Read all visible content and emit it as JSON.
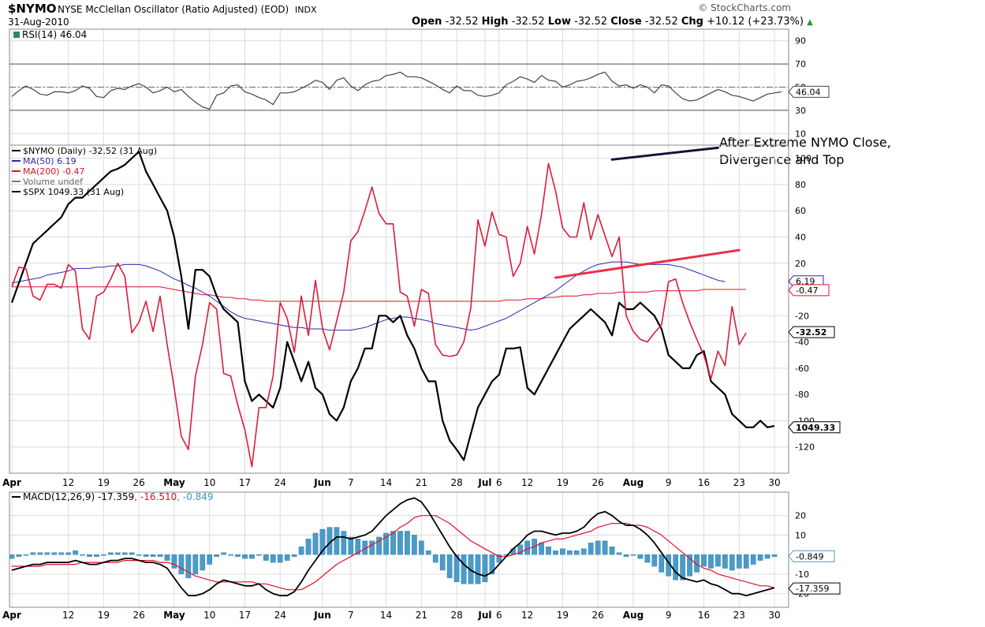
{
  "header": {
    "ticker": "$NYMO",
    "description": "NYSE McClellan Oscillator (Ratio Adjusted) (EOD)",
    "exchange": "INDX",
    "brand": "© StockCharts.com",
    "date": "31-Aug-2010",
    "ohlc": {
      "open_label": "Open",
      "open": "-32.52",
      "high_label": "High",
      "high": "-32.52",
      "low_label": "Low",
      "low": "-32.52",
      "close_label": "Close",
      "close": "-32.52",
      "chg_label": "Chg",
      "chg": "+10.12 (+23.73%)"
    }
  },
  "annotation": {
    "line1": "After Extreme NYMO Close,",
    "line2": "Divergence and Top"
  },
  "colors": {
    "nymo": "#000000",
    "ma50": "#2b2bb0",
    "ma200": "#e0102a",
    "spx": "#000000",
    "trend_red": "#e8304a",
    "trend_purple": "#1a1035",
    "macd_hist": "#4a9cc8",
    "macd_signal": "#e0102a",
    "macd_hist_label": "#3399cc"
  },
  "x_axis": {
    "top_labels": [
      {
        "text": "Apr",
        "bold": true,
        "i": 0
      },
      {
        "text": "12",
        "i": 8
      },
      {
        "text": "19",
        "i": 13
      },
      {
        "text": "26",
        "i": 18
      },
      {
        "text": "May",
        "bold": true,
        "i": 23
      },
      {
        "text": "10",
        "i": 28
      },
      {
        "text": "17",
        "i": 33
      },
      {
        "text": "24",
        "i": 38
      },
      {
        "text": "Jun",
        "bold": true,
        "i": 44
      },
      {
        "text": "7",
        "i": 48
      },
      {
        "text": "14",
        "i": 53
      },
      {
        "text": "21",
        "i": 58
      },
      {
        "text": "28",
        "i": 63
      },
      {
        "text": "Jul",
        "bold": true,
        "i": 67
      },
      {
        "text": "6",
        "i": 69
      },
      {
        "text": "12",
        "i": 73
      },
      {
        "text": "19",
        "i": 78
      },
      {
        "text": "26",
        "i": 83
      },
      {
        "text": "Aug",
        "bold": true,
        "i": 88
      },
      {
        "text": "9",
        "i": 93
      },
      {
        "text": "16",
        "i": 98
      },
      {
        "text": "23",
        "i": 103
      },
      {
        "text": "30",
        "i": 108
      }
    ]
  },
  "chart_data": [
    {
      "type": "line",
      "name": "RSI panel",
      "legend": "RSI(14) 46.04",
      "ylim": [
        0,
        100
      ],
      "ticks": [
        10,
        30,
        50,
        70,
        90
      ],
      "ref_lines": [
        30,
        70
      ],
      "last_label": "46.04",
      "series": [
        {
          "name": "RSI(14)",
          "values": [
            42,
            47,
            51,
            48,
            44,
            43,
            46,
            46,
            45,
            47,
            51,
            49,
            42,
            41,
            47,
            49,
            48,
            51,
            53,
            50,
            45,
            47,
            50,
            46,
            48,
            42,
            37,
            33,
            31,
            43,
            45,
            51,
            52,
            46,
            44,
            41,
            39,
            35,
            45,
            45,
            46,
            49,
            52,
            56,
            54,
            48,
            56,
            58,
            51,
            47,
            52,
            55,
            56,
            60,
            61,
            63,
            59,
            59,
            58,
            55,
            52,
            48,
            45,
            51,
            47,
            47,
            43,
            42,
            43,
            45,
            52,
            55,
            59,
            57,
            54,
            60,
            56,
            55,
            50,
            52,
            55,
            56,
            58,
            61,
            63,
            55,
            51,
            52,
            49,
            52,
            50,
            45,
            52,
            51,
            45,
            40,
            38,
            39,
            42,
            45,
            48,
            46,
            43,
            42,
            40,
            38,
            41,
            44,
            45,
            46
          ]
        }
      ]
    },
    {
      "type": "line",
      "name": "Main panel",
      "legend": [
        "$NYMO (Daily) -32.52 (31 Aug)",
        "MA(50) 6.19",
        "MA(200) -0.47",
        "Volume undef",
        "$SPX 1049.33 (31 Aug)"
      ],
      "ylim": [
        -140,
        110
      ],
      "ticks": [
        -120,
        -100,
        -80,
        -60,
        -40,
        -20,
        20,
        40,
        60,
        80,
        100
      ],
      "last_labels": {
        "ma50": "6.19",
        "ma200": "-0.47",
        "nymo": "-32.52",
        "spx": "1049.33"
      },
      "series": [
        {
          "name": "$NYMO",
          "values": [
            2,
            17,
            16,
            -5,
            -8,
            4,
            4,
            1,
            19,
            14,
            -30,
            -38,
            -5,
            -2,
            8,
            20,
            10,
            -33,
            -25,
            -9,
            -32,
            -5,
            -42,
            -75,
            -112,
            -122,
            -66,
            -42,
            -10,
            -15,
            -64,
            -66,
            -88,
            -107,
            -135,
            -90,
            -90,
            -66,
            -10,
            -22,
            -48,
            -5,
            -35,
            7,
            -30,
            -46,
            -24,
            -2,
            37,
            44,
            60,
            78,
            58,
            50,
            50,
            -2,
            -5,
            -28,
            0,
            -3,
            -42,
            -50,
            -51,
            -50,
            -40,
            -14,
            53,
            33,
            59,
            42,
            40,
            10,
            20,
            48,
            27,
            57,
            96,
            75,
            47,
            40,
            40,
            66,
            38,
            57,
            41,
            25,
            40,
            -20,
            -32,
            -38,
            -40,
            -33,
            -27,
            6,
            8,
            -10,
            -25,
            -38,
            -50,
            -68,
            -47,
            -58,
            -13,
            -42,
            -33
          ]
        },
        {
          "name": "MA(50)",
          "values": [
            5,
            6,
            7,
            8,
            9,
            11,
            12,
            13,
            14,
            16,
            16,
            16,
            17,
            17,
            18,
            18,
            19,
            19,
            19,
            18,
            16,
            14,
            11,
            8,
            6,
            3,
            1,
            -2,
            -5,
            -9,
            -13,
            -17,
            -20,
            -22,
            -23,
            -24,
            -25,
            -26,
            -27,
            -28,
            -29,
            -29,
            -30,
            -30,
            -30,
            -31,
            -31,
            -31,
            -31,
            -30,
            -29,
            -27,
            -25,
            -23,
            -22,
            -21,
            -21,
            -22,
            -23,
            -24,
            -26,
            -27,
            -28,
            -29,
            -30,
            -31,
            -30,
            -28,
            -26,
            -24,
            -22,
            -19,
            -16,
            -13,
            -10,
            -7,
            -4,
            -1,
            3,
            7,
            11,
            14,
            17,
            19,
            20,
            21,
            21,
            21,
            20,
            19,
            19,
            19,
            19,
            19,
            18,
            17,
            15,
            13,
            11,
            9,
            7,
            6
          ]
        },
        {
          "name": "MA(200)",
          "values": [
            2,
            2,
            2,
            2,
            2,
            2,
            2,
            2,
            2,
            2,
            2,
            2,
            2,
            2,
            2,
            2,
            2,
            2,
            2,
            2,
            2,
            2,
            1,
            0,
            -1,
            -2,
            -3,
            -4,
            -4,
            -5,
            -6,
            -6,
            -7,
            -7,
            -8,
            -8,
            -9,
            -9,
            -9,
            -9,
            -9,
            -9,
            -9,
            -9,
            -9,
            -9,
            -9,
            -9,
            -9,
            -9,
            -9,
            -9,
            -9,
            -9,
            -9,
            -9,
            -9,
            -9,
            -9,
            -9,
            -9,
            -9,
            -9,
            -9,
            -9,
            -9,
            -9,
            -9,
            -9,
            -9,
            -8,
            -8,
            -8,
            -7,
            -7,
            -7,
            -6,
            -6,
            -5,
            -5,
            -5,
            -4,
            -4,
            -3,
            -3,
            -3,
            -2,
            -2,
            -2,
            -2,
            -2,
            -1,
            -1,
            -1,
            -1,
            -1,
            -1,
            -1,
            0,
            0,
            0,
            0,
            0,
            0,
            0
          ]
        },
        {
          "name": "$SPX",
          "price_labels": [
            "1049.33"
          ],
          "values": [
            -10,
            5,
            20,
            35,
            40,
            45,
            50,
            55,
            65,
            70,
            70,
            75,
            80,
            85,
            90,
            92,
            95,
            100,
            105,
            90,
            80,
            70,
            60,
            40,
            10,
            -30,
            15,
            15,
            10,
            -5,
            -15,
            -20,
            -25,
            -70,
            -85,
            -80,
            -85,
            -90,
            -75,
            -40,
            -55,
            -70,
            -55,
            -75,
            -80,
            -95,
            -100,
            -90,
            -70,
            -60,
            -45,
            -45,
            -20,
            -20,
            -25,
            -20,
            -35,
            -45,
            -60,
            -70,
            -70,
            -100,
            -115,
            -122,
            -130,
            -110,
            -90,
            -80,
            -70,
            -65,
            -45,
            -45,
            -44,
            -75,
            -80,
            -70,
            -60,
            -50,
            -40,
            -30,
            -25,
            -20,
            -15,
            -20,
            -25,
            -35,
            -10,
            -15,
            -15,
            -10,
            -15,
            -20,
            -30,
            -50,
            -55,
            -60,
            -60,
            -50,
            -47,
            -70,
            -75,
            -80,
            -95,
            -100,
            -105,
            -105,
            -100,
            -105,
            -104
          ]
        }
      ],
      "trendlines": [
        {
          "color": "red",
          "from": {
            "i": 77,
            "v": 9
          },
          "to": {
            "i": 103,
            "v": 30
          }
        },
        {
          "color": "purple",
          "from": {
            "i": 85,
            "v": 99
          },
          "to": {
            "i": 100,
            "v": 108
          }
        }
      ]
    },
    {
      "type": "line",
      "name": "MACD panel",
      "legend": {
        "label": "MACD(12,26,9)",
        "macd": "-17.359",
        "signal": "-16.510",
        "hist": "-0.849"
      },
      "ylim": [
        -27,
        32
      ],
      "ticks": [
        -20,
        -10,
        10,
        20
      ],
      "last_labels": {
        "hist": "-0.849",
        "macd": "-17.359"
      },
      "series": [
        {
          "name": "MACD",
          "values": [
            -8,
            -7,
            -6,
            -5,
            -5,
            -4,
            -4,
            -4,
            -4,
            -3,
            -4,
            -5,
            -5,
            -4,
            -3,
            -3,
            -2,
            -2,
            -3,
            -4,
            -4,
            -5,
            -7,
            -12,
            -17,
            -21,
            -21,
            -20,
            -18,
            -15,
            -13,
            -14,
            -15,
            -16,
            -16,
            -15,
            -18,
            -20,
            -21,
            -21,
            -19,
            -14,
            -8,
            -3,
            2,
            6,
            9,
            9,
            8,
            9,
            10,
            12,
            16,
            20,
            23,
            26,
            28,
            29,
            27,
            22,
            16,
            10,
            4,
            -1,
            -5,
            -8,
            -10,
            -11,
            -9,
            -5,
            -1,
            3,
            6,
            10,
            12,
            12,
            11,
            10,
            11,
            11,
            12,
            14,
            18,
            21,
            22,
            20,
            17,
            15,
            15,
            13,
            10,
            6,
            1,
            -4,
            -9,
            -12,
            -13,
            -14,
            -13,
            -15,
            -16,
            -18,
            -20,
            -20,
            -21,
            -20,
            -19,
            -18,
            -17
          ]
        },
        {
          "name": "Signal",
          "values": [
            -6,
            -6,
            -6,
            -6,
            -6,
            -5,
            -5,
            -5,
            -5,
            -5,
            -4,
            -4,
            -4,
            -4,
            -4,
            -4,
            -3,
            -3,
            -3,
            -3,
            -3,
            -4,
            -4,
            -5,
            -7,
            -9,
            -11,
            -12,
            -13,
            -14,
            -14,
            -14,
            -14,
            -14,
            -14,
            -15,
            -15,
            -16,
            -17,
            -18,
            -18,
            -18,
            -16,
            -14,
            -11,
            -8,
            -5,
            -3,
            -1,
            1,
            3,
            5,
            7,
            9,
            11,
            14,
            16,
            19,
            20,
            20,
            20,
            18,
            16,
            13,
            10,
            7,
            5,
            3,
            1,
            -1,
            -1,
            0,
            1,
            3,
            4,
            6,
            7,
            8,
            8,
            9,
            10,
            11,
            12,
            14,
            15,
            16,
            16,
            16,
            15,
            15,
            14,
            12,
            10,
            7,
            4,
            1,
            -2,
            -5,
            -7,
            -8,
            -10,
            -11,
            -12,
            -13,
            -14,
            -15,
            -16,
            -16,
            -17
          ]
        },
        {
          "name": "Histogram",
          "values": [
            -2,
            -1,
            0,
            1,
            1,
            1,
            1,
            1,
            1,
            2,
            0,
            -1,
            -1,
            0,
            1,
            1,
            1,
            1,
            0,
            -1,
            -1,
            -1,
            -3,
            -7,
            -10,
            -12,
            -10,
            -8,
            -5,
            -1,
            1,
            0,
            -1,
            -2,
            -2,
            0,
            -3,
            -4,
            -4,
            -3,
            -1,
            4,
            8,
            11,
            13,
            14,
            14,
            12,
            9,
            8,
            7,
            7,
            9,
            11,
            12,
            12,
            12,
            10,
            7,
            2,
            -4,
            -8,
            -12,
            -14,
            -15,
            -15,
            -15,
            -14,
            -10,
            -4,
            0,
            3,
            5,
            7,
            8,
            6,
            4,
            2,
            3,
            2,
            2,
            3,
            6,
            7,
            7,
            4,
            1,
            -1,
            0,
            -2,
            -4,
            -6,
            -9,
            -11,
            -13,
            -13,
            -11,
            -9,
            -6,
            -7,
            -6,
            -7,
            -8,
            -7,
            -7,
            -5,
            -3,
            -2,
            -1
          ]
        }
      ]
    }
  ]
}
